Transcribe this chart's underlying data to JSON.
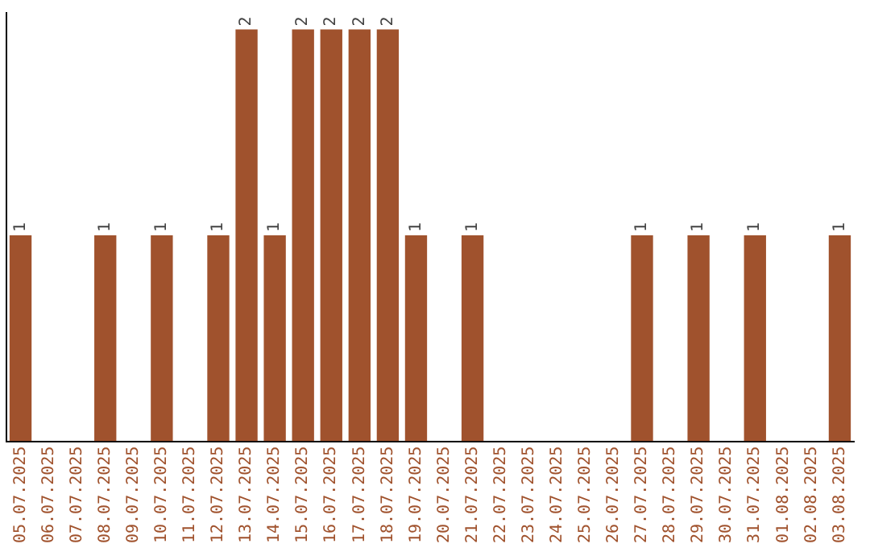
{
  "chart_data": {
    "type": "bar",
    "categories": [
      "05.07.2025",
      "06.07.2025",
      "07.07.2025",
      "08.07.2025",
      "09.07.2025",
      "10.07.2025",
      "11.07.2025",
      "12.07.2025",
      "13.07.2025",
      "14.07.2025",
      "15.07.2025",
      "16.07.2025",
      "17.07.2025",
      "18.07.2025",
      "19.07.2025",
      "20.07.2025",
      "21.07.2025",
      "22.07.2025",
      "23.07.2025",
      "24.07.2025",
      "25.07.2025",
      "26.07.2025",
      "27.07.2025",
      "28.07.2025",
      "29.07.2025",
      "30.07.2025",
      "31.07.2025",
      "01.08.2025",
      "02.08.2025",
      "03.08.2025"
    ],
    "values": [
      1,
      0,
      0,
      1,
      0,
      1,
      0,
      1,
      2,
      1,
      2,
      2,
      2,
      2,
      1,
      0,
      1,
      0,
      0,
      0,
      0,
      0,
      1,
      0,
      1,
      0,
      1,
      0,
      0,
      1
    ],
    "value_labels": [
      "1",
      null,
      null,
      "1",
      null,
      "1",
      null,
      "1",
      "2",
      "1",
      "2",
      "2",
      "2",
      "2",
      "1",
      null,
      "1",
      null,
      null,
      null,
      null,
      null,
      "1",
      null,
      "1",
      null,
      "1",
      null,
      null,
      "1"
    ],
    "color": "#a0522d",
    "ylim": [
      0,
      2.08
    ],
    "tick_labels": "x",
    "grid": false,
    "legend": false
  }
}
